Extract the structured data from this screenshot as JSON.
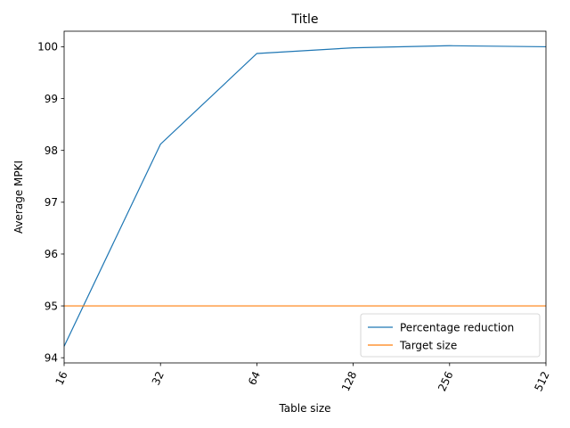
{
  "chart_data": {
    "type": "line",
    "title": "Title",
    "xlabel": "Table size",
    "ylabel": "Average MPKI",
    "x": [
      16,
      32,
      64,
      128,
      256,
      512
    ],
    "x_scale": "log2",
    "xlim": [
      16,
      512
    ],
    "ylim": [
      93.9,
      100.3
    ],
    "yticks": [
      94,
      95,
      96,
      97,
      98,
      99,
      100
    ],
    "xtick_rotation": 65,
    "grid": false,
    "legend_position": "lower-right",
    "series": [
      {
        "name": "Percentage reduction",
        "color": "#1f77b4",
        "values": [
          94.22,
          98.12,
          99.87,
          99.98,
          100.02,
          100.0
        ]
      },
      {
        "name": "Target size",
        "color": "#ff7f0e",
        "values": [
          95.0,
          95.0,
          95.0,
          95.0,
          95.0,
          95.0
        ]
      }
    ]
  }
}
